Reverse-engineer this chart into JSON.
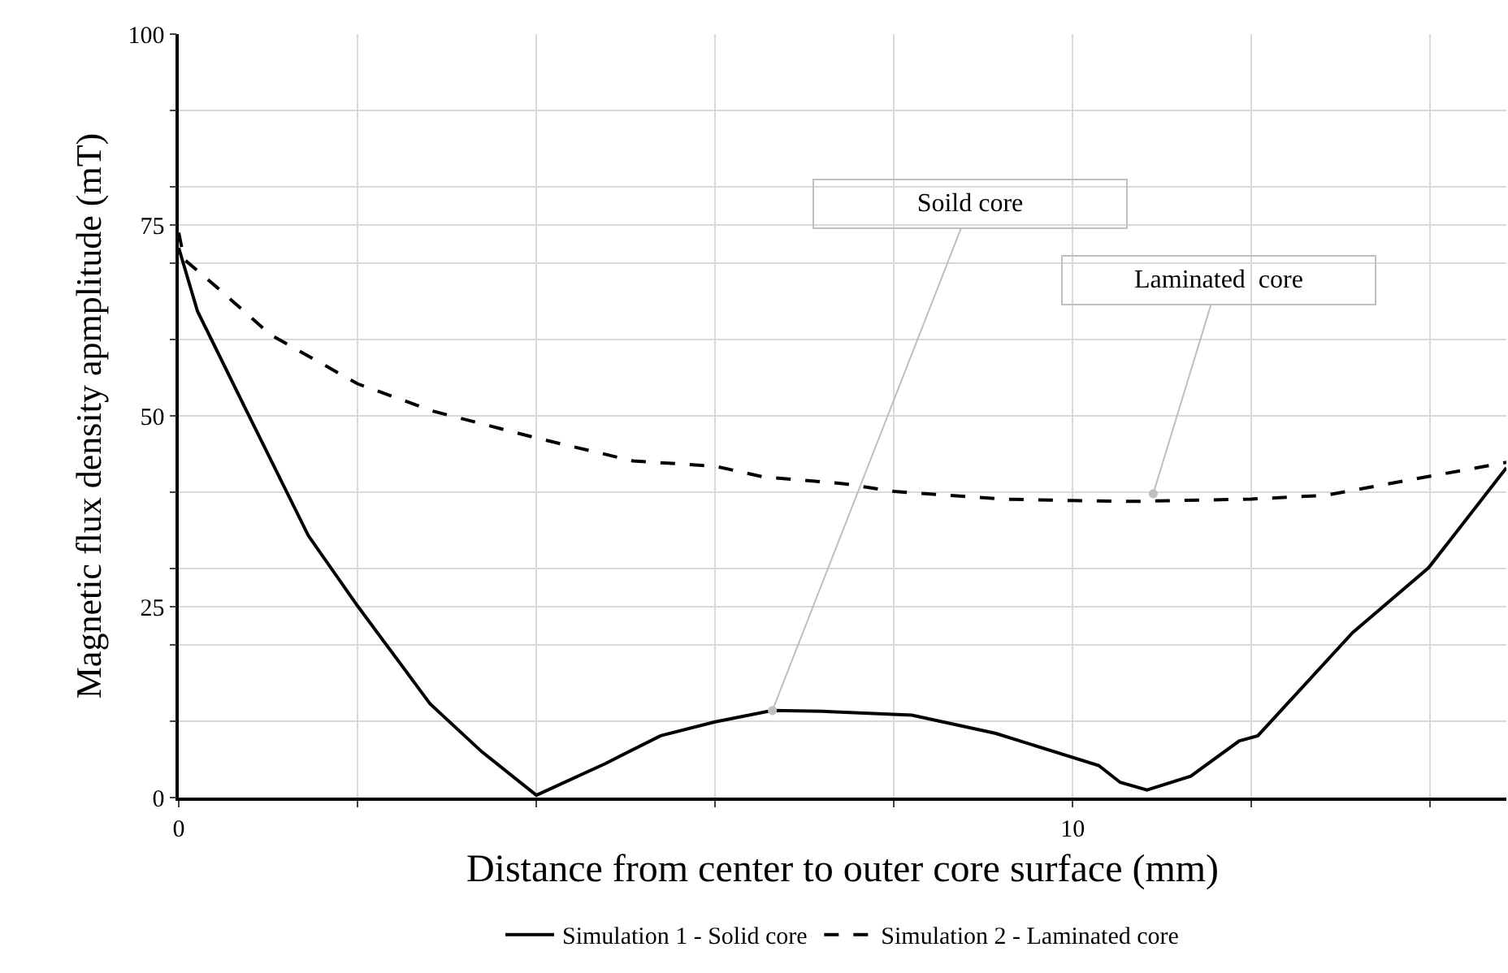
{
  "chart_data": {
    "type": "line",
    "xlabel": "Distance from center to outer core surface (mm)",
    "ylabel": "Magnetic flux density apmplitude (mT)",
    "xlim": [
      0,
      14.85
    ],
    "xticks": [
      0,
      {
        "value": 2,
        "label": null
      },
      {
        "value": 4,
        "label": null
      },
      {
        "value": 6,
        "label": null
      },
      {
        "value": 8,
        "label": null
      },
      10,
      {
        "value": 12,
        "label": null
      },
      {
        "value": 14,
        "label": null
      }
    ],
    "ylim": [
      0,
      100
    ],
    "yticks": [
      0,
      {
        "value": 10,
        "label": null
      },
      {
        "value": 20,
        "label": null
      },
      25,
      {
        "value": 30,
        "label": null
      },
      {
        "value": 40,
        "label": null
      },
      50,
      {
        "value": 60,
        "label": null
      },
      {
        "value": 70,
        "label": null
      },
      75,
      {
        "value": 80,
        "label": null
      },
      {
        "value": 90,
        "label": null
      },
      100
    ],
    "grid": true,
    "legend": "bottom",
    "marker": "none",
    "series": [
      {
        "name": "Simulation 1 - Solid core",
        "color": "#000000",
        "line_style": "solid",
        "x": [
          0,
          0.21,
          0.79,
          1.45,
          2.0,
          2.81,
          3.39,
          4.0,
          4.78,
          5.39,
          5.99,
          6.64,
          7.2,
          8.2,
          9.14,
          10.29,
          10.53,
          10.83,
          11.32,
          11.86,
          12.07,
          13.13,
          13.98,
          14.85
        ],
        "values": [
          72,
          63.7,
          49.9,
          34.3,
          25.1,
          12.3,
          6.0,
          0.3,
          4.5,
          8.1,
          9.9,
          11.4,
          11.3,
          10.8,
          8.4,
          4.2,
          2.0,
          1.0,
          2.8,
          7.4,
          8.1,
          21.6,
          30.1,
          43.2
        ]
      },
      {
        "name": "Simulation 2 - Laminated core",
        "color": "#000000",
        "line_style": "dashed",
        "x": [
          0,
          0.06,
          0.42,
          1.03,
          2.0,
          2.85,
          4.0,
          5.08,
          6.0,
          6.54,
          7.45,
          8.0,
          9.2,
          10.0,
          10.71,
          12.0,
          12.83,
          14.0,
          14.85
        ],
        "values": [
          74.0,
          70.5,
          66.9,
          60.6,
          54.2,
          50.6,
          47.1,
          44.1,
          43.4,
          42.0,
          41.1,
          40.1,
          39.1,
          38.9,
          38.8,
          39.1,
          39.6,
          42.1,
          43.9
        ]
      }
    ],
    "annotations": [
      {
        "text": "Soild core",
        "x": 6.64,
        "y": 11.4
      },
      {
        "text": "Laminated  core",
        "x": 10.9,
        "y": 39.8
      }
    ]
  }
}
